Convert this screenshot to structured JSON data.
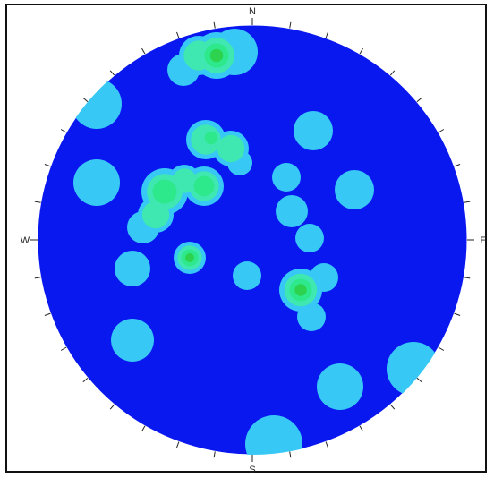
{
  "plot": {
    "type": "stereonet-pole-density",
    "directions": {
      "north": "N",
      "south": "S",
      "east": "E",
      "west": "W"
    },
    "colors": {
      "background_density": "#0a18f0",
      "rim": "#ffffff",
      "contour_1": "#37c8f5",
      "contour_2": "#3fe7b1",
      "contour_3": "#2ee88c",
      "contour_4": "#2dd24f",
      "tick": "#222222"
    }
  }
}
